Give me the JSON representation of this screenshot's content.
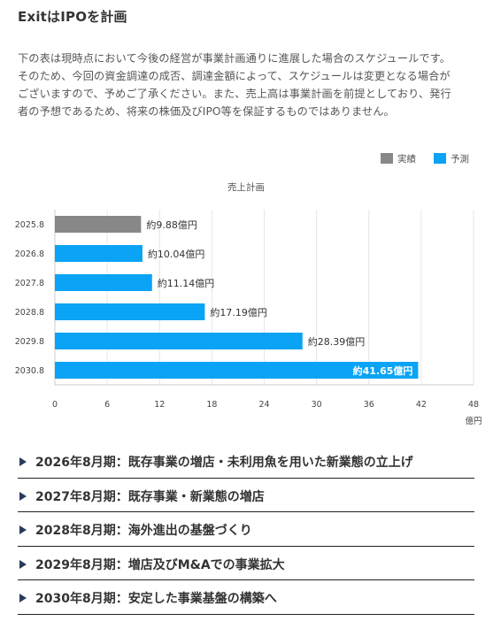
{
  "title": "ExitはIPOを計画",
  "description": [
    "下の表は現時点において今後の経営が事業計画通りに進展した場合のスケジュールです。",
    "そのため、今回の資金調達の成否、調達金額によって、スケジュールは変更となる場合が",
    "ございますので、予めご了承ください。また、売上高は事業計画を前提としており、発行",
    "者の予想であるため、将来の株価及びIPO等を保証するものではありません。"
  ],
  "chart_data": {
    "type": "bar",
    "orientation": "horizontal",
    "title": "売上計画",
    "categories": [
      "2025.8",
      "2026.8",
      "2027.8",
      "2028.8",
      "2029.8",
      "2030.8"
    ],
    "values": [
      9.88,
      10.04,
      11.14,
      17.19,
      28.39,
      41.65
    ],
    "status": [
      "実績",
      "予測",
      "予測",
      "予測",
      "予測",
      "予測"
    ],
    "data_labels": [
      "約9.88億円",
      "約10.04億円",
      "約11.14億円",
      "約17.19億円",
      "約28.39億円",
      "約41.65億円"
    ],
    "xlim": [
      0,
      48
    ],
    "xticks": [
      0,
      6,
      12,
      18,
      24,
      30,
      36,
      42,
      48
    ],
    "xunit": "億円",
    "legend": [
      {
        "name": "実績",
        "color": "#888888"
      },
      {
        "name": "予測",
        "color": "#0aa3f5"
      }
    ],
    "legend_position": "top-right",
    "grid": true
  },
  "accordion": [
    {
      "label": "2026年8月期：既存事業の増店・未利用魚を用いた新業態の立上げ"
    },
    {
      "label": "2027年8月期：既存事業・新業態の増店"
    },
    {
      "label": "2028年8月期：海外進出の基盤づくり"
    },
    {
      "label": "2029年8月期：増店及びM&Aでの事業拡大"
    },
    {
      "label": "2030年8月期：安定した事業基盤の構築へ"
    }
  ],
  "icons": {
    "accordion_marker": "triangle-right-icon"
  }
}
